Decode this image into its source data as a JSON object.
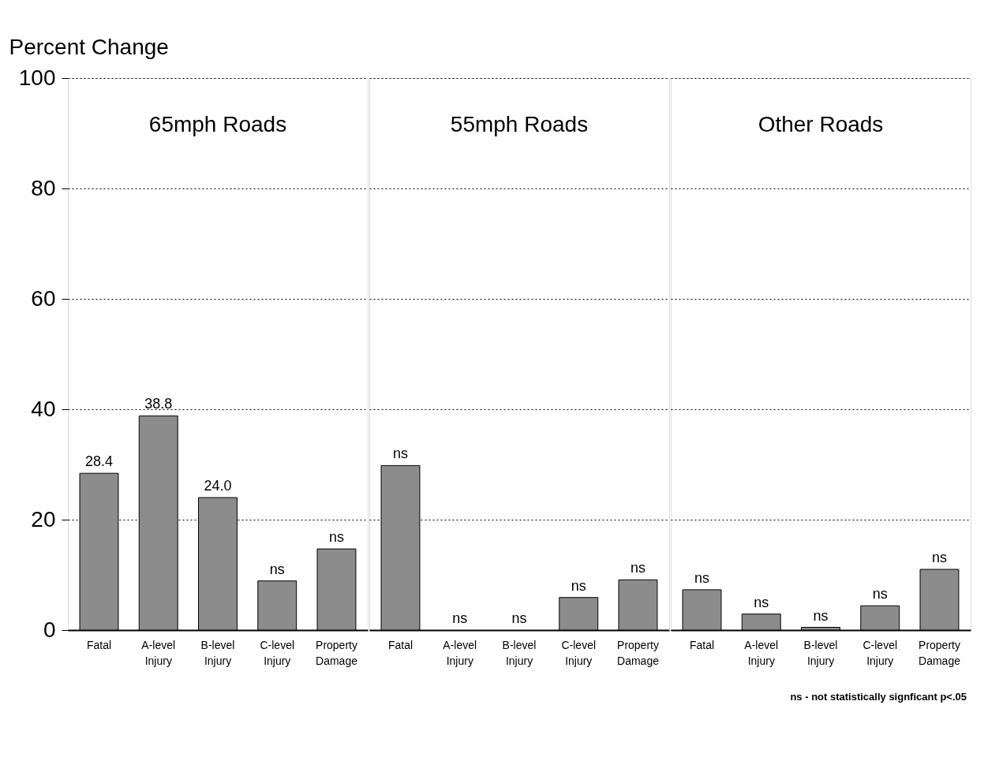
{
  "chart_data": [
    {
      "type": "bar",
      "title": "65mph Roads",
      "ylabel": "Percent Change",
      "categories": [
        "Fatal",
        "A-level Injury",
        "B-level Injury",
        "C-level Injury",
        "Property Damage"
      ],
      "values": [
        28.4,
        38.8,
        24.0,
        8.9,
        14.7
      ],
      "value_labels": [
        "28.4",
        "38.8",
        "24.0",
        "ns",
        "ns"
      ],
      "color": "#8c8c8c",
      "ylim": [
        0,
        100
      ],
      "yticks": [
        0,
        20,
        40,
        60,
        80,
        100
      ],
      "grid": "y"
    },
    {
      "type": "bar",
      "title": "55mph Roads",
      "categories": [
        "Fatal",
        "A-level Injury",
        "B-level Injury",
        "C-level Injury",
        "Property Damage"
      ],
      "values": [
        29.8,
        0,
        0,
        5.9,
        9.1
      ],
      "value_labels": [
        "ns",
        "ns",
        "ns",
        "ns",
        "ns"
      ],
      "color": "#8c8c8c",
      "ylim": [
        0,
        100
      ],
      "yticks": [
        0,
        20,
        40,
        60,
        80,
        100
      ],
      "grid": "y",
      "tick_labels": "x"
    },
    {
      "type": "bar",
      "title": "Other Roads",
      "categories": [
        "Fatal",
        "A-level Injury",
        "B-level Injury",
        "C-level Injury",
        "Property Damage"
      ],
      "values": [
        7.3,
        2.9,
        0.5,
        4.4,
        11.0
      ],
      "value_labels": [
        "ns",
        "ns",
        "ns",
        "ns",
        "ns"
      ],
      "color": "#8c8c8c",
      "ylim": [
        0,
        100
      ],
      "yticks": [
        0,
        20,
        40,
        60,
        80,
        100
      ],
      "grid": "y",
      "tick_labels": "x",
      "annotations": [
        "ns - not statistically signficant p<.05"
      ]
    }
  ]
}
